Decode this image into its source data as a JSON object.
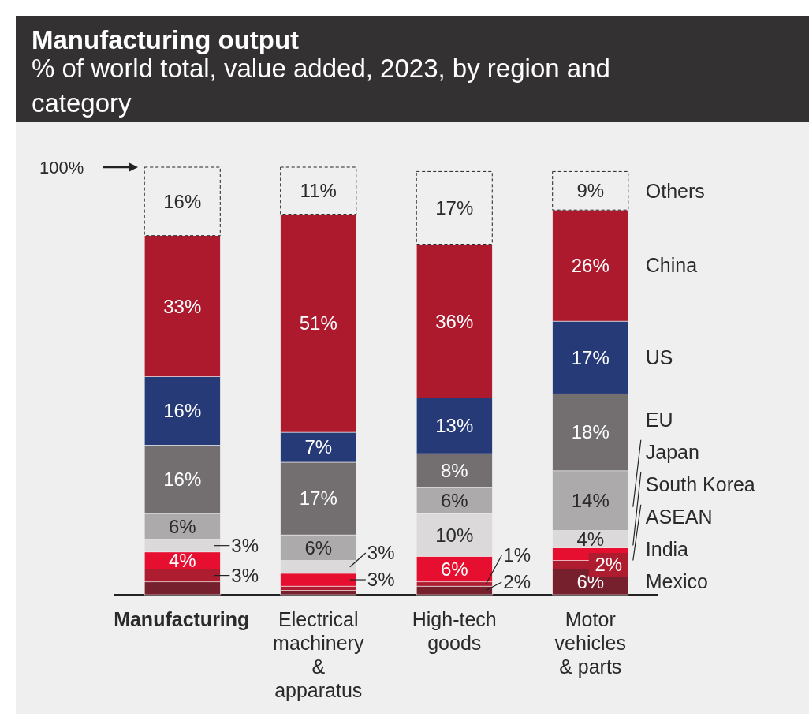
{
  "chart_data": {
    "type": "bar",
    "stacked": true,
    "title": "Manufacturing output",
    "subtitle": "% of world total, value added, 2023, by region and category",
    "categories": [
      "Manufacturing",
      "Electrical machinery & apparatus",
      "High-tech goods",
      "Motor vehicles & parts"
    ],
    "ylim": [
      0,
      100
    ],
    "annotations": [
      "100%"
    ],
    "legend": "right",
    "series": [
      {
        "name": "Mexico",
        "color": "#76202e",
        "values": [
          3,
          1,
          2,
          6
        ],
        "value_labels": [
          null,
          null,
          "2%",
          "6%"
        ]
      },
      {
        "name": "India",
        "color": "#ad1c2f",
        "values": [
          3,
          1,
          1,
          2
        ],
        "value_labels": [
          "3%",
          null,
          "1%",
          "2%"
        ]
      },
      {
        "name": "ASEAN",
        "color": "#e60f2f",
        "values": [
          4,
          3,
          6,
          3
        ],
        "value_labels": [
          "4%",
          "3%",
          "6%",
          null
        ]
      },
      {
        "name": "South Korea",
        "color": "#dbd9da",
        "values": [
          3,
          3,
          10,
          4
        ],
        "value_labels": [
          "3%",
          "3%",
          "10%",
          "4%"
        ]
      },
      {
        "name": "Japan",
        "color": "#adaaab",
        "values": [
          6,
          6,
          6,
          14
        ],
        "value_labels": [
          "6%",
          "6%",
          "6%",
          "14%"
        ]
      },
      {
        "name": "EU",
        "color": "#736e70",
        "values": [
          16,
          17,
          8,
          18
        ],
        "value_labels": [
          "16%",
          "17%",
          "8%",
          "18%"
        ]
      },
      {
        "name": "US",
        "color": "#263a78",
        "values": [
          16,
          7,
          13,
          17
        ],
        "value_labels": [
          "16%",
          "7%",
          "13%",
          "17%"
        ]
      },
      {
        "name": "China",
        "color": "#ad1a2e",
        "values": [
          33,
          51,
          36,
          26
        ],
        "value_labels": [
          "33%",
          "51%",
          "36%",
          "26%"
        ]
      },
      {
        "name": "Others",
        "color": "#efefef",
        "line_style": "dashed",
        "values": [
          16,
          11,
          17,
          9
        ],
        "value_labels": [
          "16%",
          "11%",
          "17%",
          "9%"
        ]
      }
    ]
  }
}
